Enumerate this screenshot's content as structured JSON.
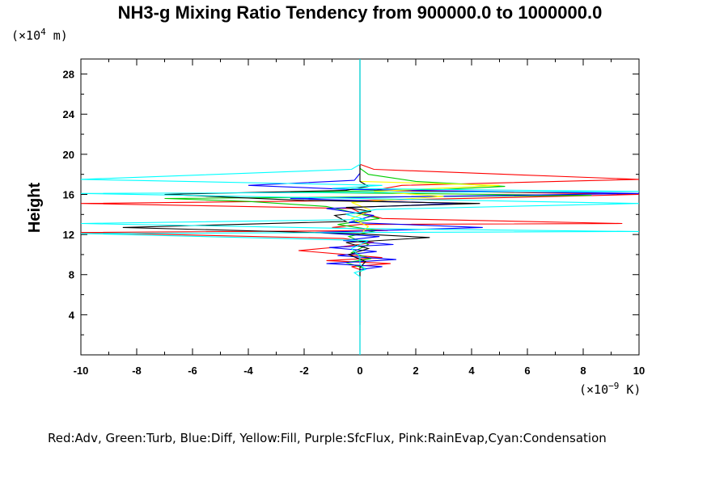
{
  "chart_data": {
    "type": "line",
    "title": "NH3-g Mixing Ratio Tendency from 900000.0 to 1000000.0",
    "ylabel": "Height",
    "y_unit_prefix": "(×10",
    "y_unit_exp": "4",
    "y_unit_suffix": " m)",
    "x_unit_prefix": "(×10",
    "x_unit_exp": "−9",
    "x_unit_suffix": " K)",
    "xlim": [
      -10,
      10
    ],
    "ylim": [
      0,
      29.5
    ],
    "x_ticks": [
      -10,
      -8,
      -6,
      -4,
      -2,
      0,
      2,
      4,
      6,
      8,
      10
    ],
    "y_ticks": [
      4,
      8,
      12,
      16,
      20,
      24,
      28
    ],
    "legend_text": "Red:Adv, Green:Turb, Blue:Diff, Yellow:Fill, Purple:SfcFlux, Pink:RainEvap,Cyan:Condensation",
    "series": [
      {
        "color": "#ff0000",
        "points": [
          [
            0,
            0.3
          ],
          [
            0,
            8.5
          ],
          [
            -0.3,
            8.8
          ],
          [
            1.1,
            9.1
          ],
          [
            -1.2,
            9.4
          ],
          [
            0.8,
            9.7
          ],
          [
            -0.5,
            10.0
          ],
          [
            -2.2,
            10.4
          ],
          [
            -0.6,
            10.8
          ],
          [
            0.5,
            11.2
          ],
          [
            -0.6,
            11.6
          ],
          [
            -10,
            12.2
          ],
          [
            1.0,
            12.4
          ],
          [
            -1.0,
            12.7
          ],
          [
            0,
            13.0
          ],
          [
            9.4,
            13.1
          ],
          [
            0.8,
            13.6
          ],
          [
            0,
            14.2
          ],
          [
            -0.3,
            14.6
          ],
          [
            -10,
            15.1
          ],
          [
            0.2,
            15.4
          ],
          [
            5.5,
            15.7
          ],
          [
            10,
            16.0
          ],
          [
            0.5,
            16.4
          ],
          [
            1.5,
            16.9
          ],
          [
            10,
            17.5
          ],
          [
            0.5,
            18.5
          ],
          [
            0,
            19.0
          ],
          [
            0,
            29.5
          ]
        ]
      },
      {
        "color": "#00cc00",
        "points": [
          [
            0,
            0.0
          ],
          [
            0,
            8.3
          ],
          [
            0.2,
            8.6
          ],
          [
            -0.5,
            9.2
          ],
          [
            0.4,
            9.6
          ],
          [
            -0.3,
            10.2
          ],
          [
            0.3,
            11.0
          ],
          [
            -0.4,
            11.8
          ],
          [
            0.6,
            12.4
          ],
          [
            -0.8,
            13.0
          ],
          [
            0.7,
            13.6
          ],
          [
            -0.4,
            14.3
          ],
          [
            -1.2,
            14.8
          ],
          [
            -4.0,
            15.3
          ],
          [
            -7.0,
            15.6
          ],
          [
            8.3,
            15.9
          ],
          [
            -2.5,
            16.2
          ],
          [
            3.0,
            16.5
          ],
          [
            5.2,
            16.8
          ],
          [
            2.0,
            17.3
          ],
          [
            0.3,
            18.0
          ],
          [
            0,
            18.6
          ],
          [
            0,
            29.5
          ]
        ]
      },
      {
        "color": "#0000ff",
        "points": [
          [
            0,
            0.0
          ],
          [
            0,
            8.5
          ],
          [
            0.8,
            8.8
          ],
          [
            -1.2,
            9.1
          ],
          [
            1.3,
            9.5
          ],
          [
            -0.8,
            9.9
          ],
          [
            0.6,
            10.3
          ],
          [
            -1.1,
            10.7
          ],
          [
            1.2,
            11.0
          ],
          [
            -0.6,
            11.4
          ],
          [
            0.7,
            11.8
          ],
          [
            -1.6,
            12.2
          ],
          [
            4.4,
            12.7
          ],
          [
            -0.4,
            13.2
          ],
          [
            0.5,
            13.9
          ],
          [
            -1.2,
            14.6
          ],
          [
            3.5,
            15.1
          ],
          [
            -2.5,
            15.6
          ],
          [
            10,
            16.1
          ],
          [
            -0.4,
            16.5
          ],
          [
            -4.0,
            16.9
          ],
          [
            -0.2,
            17.4
          ],
          [
            0,
            18.1
          ],
          [
            0,
            29.5
          ]
        ]
      },
      {
        "color": "#ffff00",
        "points": [
          [
            0,
            12.0
          ],
          [
            0.3,
            12.8
          ],
          [
            -0.3,
            13.6
          ],
          [
            0.4,
            14.4
          ],
          [
            -0.3,
            15.2
          ],
          [
            3.0,
            15.8
          ],
          [
            0.5,
            16.3
          ],
          [
            5.0,
            16.9
          ],
          [
            0,
            17.3
          ]
        ]
      },
      {
        "color": "#000000",
        "points": [
          [
            0,
            3.0
          ],
          [
            0,
            3.5
          ],
          [
            0,
            8.7
          ],
          [
            0.2,
            9.3
          ],
          [
            -0.4,
            10.0
          ],
          [
            0.3,
            10.6
          ],
          [
            -0.5,
            11.2
          ],
          [
            2.5,
            11.7
          ],
          [
            -0.3,
            12.1
          ],
          [
            -8.5,
            12.7
          ],
          [
            -0.5,
            13.3
          ],
          [
            -0.9,
            13.9
          ],
          [
            0.4,
            14.3
          ],
          [
            -0.5,
            14.7
          ],
          [
            4.3,
            15.1
          ],
          [
            -2.0,
            15.4
          ],
          [
            -7.0,
            16.0
          ],
          [
            -0.5,
            16.4
          ],
          [
            0.3,
            16.8
          ],
          [
            0,
            17.3
          ],
          [
            0,
            29.5
          ]
        ]
      },
      {
        "color": "#00ffff",
        "points": [
          [
            0,
            0.0
          ],
          [
            0,
            7.8
          ],
          [
            -0.2,
            8.2
          ],
          [
            0.2,
            8.5
          ],
          [
            0,
            9.0
          ],
          [
            0,
            9.8
          ],
          [
            -0.3,
            10.6
          ],
          [
            0.3,
            11.4
          ],
          [
            -10,
            12.1
          ],
          [
            10,
            12.3
          ],
          [
            -0.3,
            12.6
          ],
          [
            -10,
            13.1
          ],
          [
            0.2,
            13.5
          ],
          [
            -0.5,
            14.0
          ],
          [
            0.6,
            14.5
          ],
          [
            10,
            15.1
          ],
          [
            -10,
            16.1
          ],
          [
            10,
            16.3
          ],
          [
            -1.0,
            16.6
          ],
          [
            0.8,
            16.9
          ],
          [
            -10,
            17.5
          ],
          [
            -0.3,
            18.5
          ],
          [
            0,
            19.0
          ],
          [
            0,
            29.5
          ]
        ]
      }
    ]
  }
}
